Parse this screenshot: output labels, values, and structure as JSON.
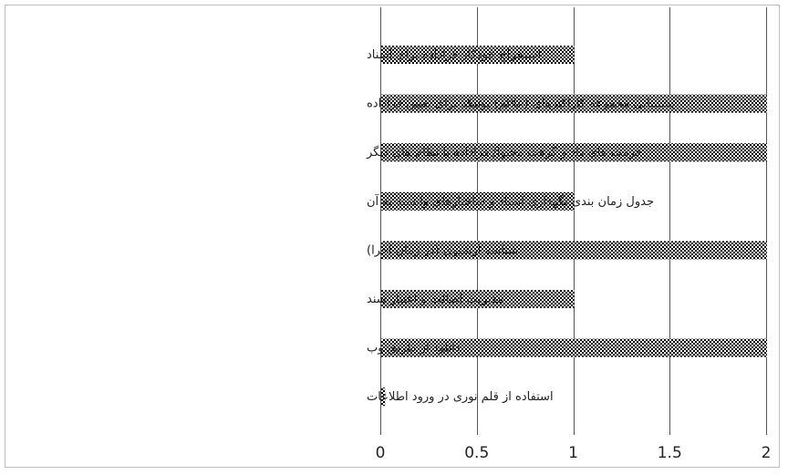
{
  "chart_data": {
    "type": "bar",
    "orientation": "horizontal",
    "categories": [
      "استخراج خودکار فراداده  برای اسناد",
      "پشتیبانی مجموعه کاراکترهای (علائم) یونیکد برای تعیین فراداده",
      "فرمت های داد و گرفت محتوا/ فراداده  با نظام های دیگر",
      "جدول زمان بندی نگهداری اسناد و  ساختارهای وابسته به آن",
      "شناسه آرشیوی (در زمان اجرا)",
      "مدیریت اصالت و اعتبار سند",
      "دانلود از طریق وب",
      "استفاده از قلم نوری در ورود اطلاعات"
    ],
    "values": [
      1,
      2,
      2,
      1,
      2,
      1,
      2,
      0.02
    ],
    "xlim": [
      0,
      2
    ],
    "xticks": [
      "0",
      "0.5",
      "1",
      "1.5",
      "2"
    ],
    "xtick_values": [
      0,
      0.5,
      1,
      1.5,
      2
    ],
    "grid": true,
    "colors": {
      "bar_fill": "#ffffff",
      "bar_pattern": "#000000",
      "grid": "#555555",
      "text": "#222222"
    }
  }
}
